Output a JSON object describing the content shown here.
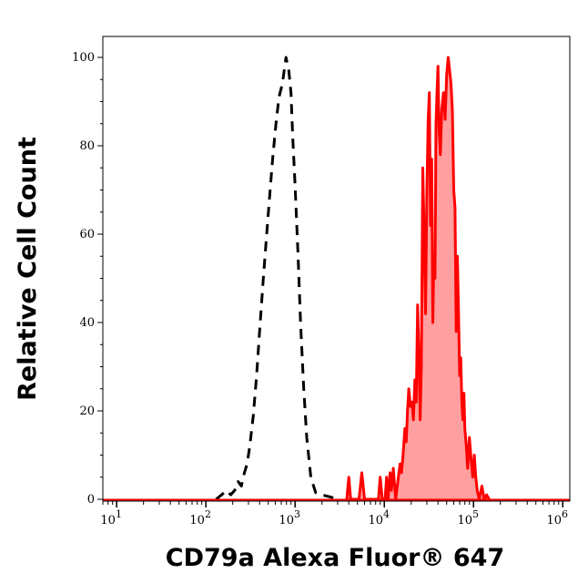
{
  "chart_data": {
    "type": "histogram",
    "title": "",
    "xlabel": "CD79a Alexa Fluor® 647",
    "ylabel": "Relative Cell Count",
    "x_scale": "log",
    "xlim": [
      7,
      1200000
    ],
    "ylim": [
      0,
      105
    ],
    "grid": false,
    "legend": "none",
    "y_ticks": [
      {
        "value": 0,
        "label": "0"
      },
      {
        "value": 20,
        "label": "20"
      },
      {
        "value": 40,
        "label": "40"
      },
      {
        "value": 60,
        "label": "60"
      },
      {
        "value": 80,
        "label": "80"
      },
      {
        "value": 100,
        "label": "100"
      }
    ],
    "x_ticks": [
      {
        "value": 10,
        "base": "10",
        "exp": "1"
      },
      {
        "value": 100,
        "base": "10",
        "exp": "2"
      },
      {
        "value": 1000,
        "base": "10",
        "exp": "3"
      },
      {
        "value": 10000,
        "base": "10",
        "exp": "4"
      },
      {
        "value": 100000,
        "base": "10",
        "exp": "5"
      },
      {
        "value": 1000000,
        "base": "10",
        "exp": "6"
      }
    ],
    "series": [
      {
        "style": "dashed-outline",
        "color": "#000000",
        "points": [
          [
            130,
            0
          ],
          [
            150,
            1
          ],
          [
            170,
            2
          ],
          [
            190,
            1
          ],
          [
            210,
            2
          ],
          [
            230,
            4
          ],
          [
            250,
            3
          ],
          [
            270,
            6
          ],
          [
            290,
            8
          ],
          [
            310,
            12
          ],
          [
            340,
            19
          ],
          [
            370,
            28
          ],
          [
            400,
            38
          ],
          [
            440,
            50
          ],
          [
            480,
            60
          ],
          [
            520,
            69
          ],
          [
            560,
            77
          ],
          [
            610,
            85
          ],
          [
            660,
            91
          ],
          [
            720,
            94
          ],
          [
            790,
            100
          ],
          [
            850,
            97
          ],
          [
            900,
            92
          ],
          [
            940,
            82
          ],
          [
            1000,
            71
          ],
          [
            1080,
            55
          ],
          [
            1150,
            40
          ],
          [
            1250,
            25
          ],
          [
            1350,
            14
          ],
          [
            1500,
            5
          ],
          [
            1700,
            1.5
          ],
          [
            2000,
            1
          ],
          [
            2500,
            0.5
          ],
          [
            3000,
            0
          ]
        ]
      },
      {
        "style": "filled",
        "color": "#ff0000",
        "fill": "#ff9f9f",
        "points": [
          [
            3800,
            0
          ],
          [
            4000,
            5
          ],
          [
            4200,
            0
          ],
          [
            5200,
            0
          ],
          [
            5600,
            6
          ],
          [
            6000,
            0
          ],
          [
            8600,
            0
          ],
          [
            9000,
            5
          ],
          [
            9500,
            0
          ],
          [
            10200,
            0
          ],
          [
            10600,
            5
          ],
          [
            11000,
            0
          ],
          [
            11600,
            6
          ],
          [
            12000,
            2
          ],
          [
            12600,
            7
          ],
          [
            13400,
            0
          ],
          [
            14200,
            4
          ],
          [
            15000,
            8
          ],
          [
            15600,
            6
          ],
          [
            16200,
            10
          ],
          [
            17000,
            16
          ],
          [
            17600,
            13
          ],
          [
            18200,
            20
          ],
          [
            18800,
            25
          ],
          [
            19600,
            21
          ],
          [
            20400,
            22
          ],
          [
            21200,
            18
          ],
          [
            22000,
            27
          ],
          [
            22800,
            22
          ],
          [
            23600,
            44
          ],
          [
            24400,
            33
          ],
          [
            25200,
            18
          ],
          [
            26000,
            30
          ],
          [
            27000,
            75
          ],
          [
            28000,
            60
          ],
          [
            29000,
            42
          ],
          [
            30000,
            70
          ],
          [
            31000,
            86
          ],
          [
            32000,
            92
          ],
          [
            33000,
            62
          ],
          [
            34000,
            77
          ],
          [
            35000,
            40
          ],
          [
            36000,
            55
          ],
          [
            37000,
            50
          ],
          [
            38000,
            85
          ],
          [
            39000,
            92
          ],
          [
            40000,
            98
          ],
          [
            41000,
            84
          ],
          [
            42500,
            78
          ],
          [
            44000,
            88
          ],
          [
            46000,
            92
          ],
          [
            48000,
            86
          ],
          [
            50000,
            96
          ],
          [
            52000,
            100
          ],
          [
            54000,
            97
          ],
          [
            56000,
            94
          ],
          [
            58000,
            88
          ],
          [
            60000,
            70
          ],
          [
            62000,
            66
          ],
          [
            64000,
            38
          ],
          [
            66000,
            55
          ],
          [
            68000,
            42
          ],
          [
            70000,
            28
          ],
          [
            72000,
            32
          ],
          [
            74000,
            22
          ],
          [
            76000,
            18
          ],
          [
            78000,
            24
          ],
          [
            80000,
            16
          ],
          [
            83000,
            12
          ],
          [
            86000,
            7
          ],
          [
            90000,
            14
          ],
          [
            94000,
            9
          ],
          [
            98000,
            5
          ],
          [
            102000,
            10
          ],
          [
            106000,
            5
          ],
          [
            110000,
            2
          ],
          [
            116000,
            0
          ],
          [
            124000,
            3
          ],
          [
            132000,
            0
          ],
          [
            140000,
            1
          ],
          [
            150000,
            0
          ]
        ]
      }
    ]
  }
}
